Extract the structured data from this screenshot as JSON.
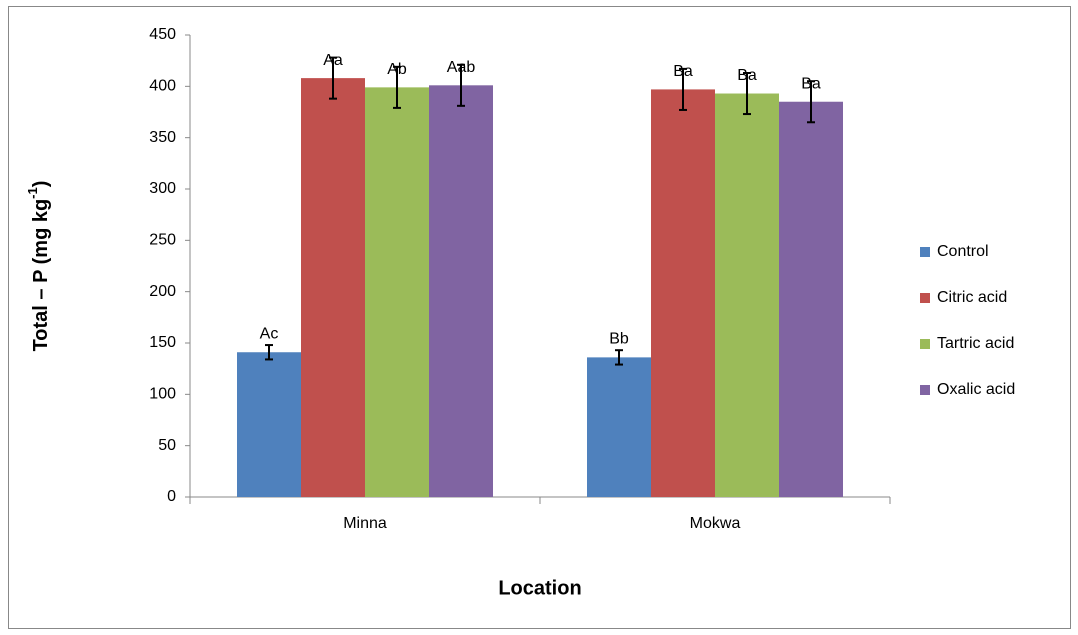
{
  "chart_data": {
    "type": "bar",
    "y_label": [
      "Total – P (mg kg",
      "-1",
      ")"
    ],
    "x_label": "Location",
    "categories": [
      "Minna",
      "Mokwa"
    ],
    "series": [
      {
        "name": "Control",
        "color": "#4f81bd",
        "values": [
          141,
          136
        ],
        "errors": [
          7,
          7
        ],
        "annotations": [
          "Ac",
          "Bb"
        ]
      },
      {
        "name": "Citric acid",
        "color": "#c0504d",
        "values": [
          408,
          397
        ],
        "errors": [
          20,
          20
        ],
        "annotations": [
          "Aa",
          "Ba"
        ]
      },
      {
        "name": "Tartric acid",
        "color": "#9bbb59",
        "values": [
          399,
          393
        ],
        "errors": [
          20,
          20
        ],
        "annotations": [
          "Ab",
          "Ba"
        ]
      },
      {
        "name": "Oxalic acid",
        "color": "#8064a2",
        "values": [
          401,
          385
        ],
        "errors": [
          20,
          20
        ],
        "annotations": [
          "Aab",
          "Ba"
        ]
      }
    ],
    "ylim": [
      0,
      450
    ],
    "yticks": [
      0,
      50,
      100,
      150,
      200,
      250,
      300,
      350,
      400,
      450
    ],
    "grid": false,
    "legend": "right"
  }
}
